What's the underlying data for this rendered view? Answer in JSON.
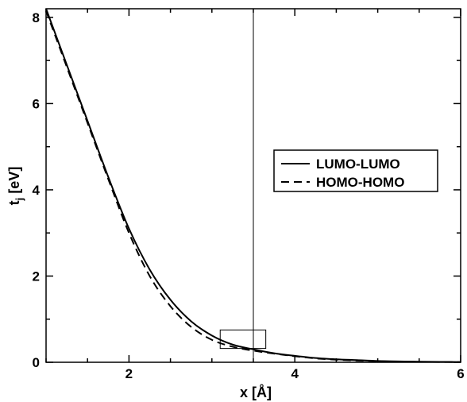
{
  "chart_data": {
    "type": "line",
    "xlabel": "x [Å]",
    "ylabel_main": "t",
    "ylabel_sub": "j",
    "ylabel_unit": " [eV]",
    "xlim": [
      1,
      6
    ],
    "ylim": [
      0,
      8.2
    ],
    "xticks": [
      2,
      4,
      6
    ],
    "yticks": [
      0,
      2,
      4,
      6,
      8
    ],
    "grid": false,
    "legend_position": "right-middle",
    "vertical_line_x": 3.5,
    "highlight_box": {
      "x": [
        3.1,
        3.65
      ],
      "y": [
        0.32,
        0.75
      ]
    },
    "series": [
      {
        "name": "LUMO-LUMO",
        "style": "solid",
        "x": [
          1.0,
          1.25,
          1.5,
          1.75,
          2.0,
          2.25,
          2.5,
          2.75,
          3.0,
          3.25,
          3.5,
          3.75,
          4.0,
          4.25,
          4.5,
          4.75,
          5.0,
          5.25,
          5.5,
          5.75,
          6.0
        ],
        "y": [
          8.2,
          6.9,
          5.6,
          4.3,
          3.1,
          2.15,
          1.45,
          0.95,
          0.62,
          0.41,
          0.3,
          0.21,
          0.15,
          0.1,
          0.07,
          0.05,
          0.03,
          0.02,
          0.015,
          0.01,
          0.005
        ]
      },
      {
        "name": "HOMO-HOMO",
        "style": "dashed",
        "x": [
          1.0,
          1.25,
          1.5,
          1.75,
          2.0,
          2.25,
          2.5,
          2.75,
          3.0,
          3.25,
          3.5,
          3.75,
          4.0,
          4.25,
          4.5,
          4.75,
          5.0,
          5.25,
          5.5,
          5.75,
          6.0
        ],
        "y": [
          8.15,
          6.85,
          5.55,
          4.25,
          3.0,
          2.0,
          1.3,
          0.82,
          0.52,
          0.36,
          0.27,
          0.2,
          0.14,
          0.09,
          0.06,
          0.04,
          0.025,
          0.015,
          0.01,
          0.008,
          0.005
        ]
      }
    ]
  }
}
